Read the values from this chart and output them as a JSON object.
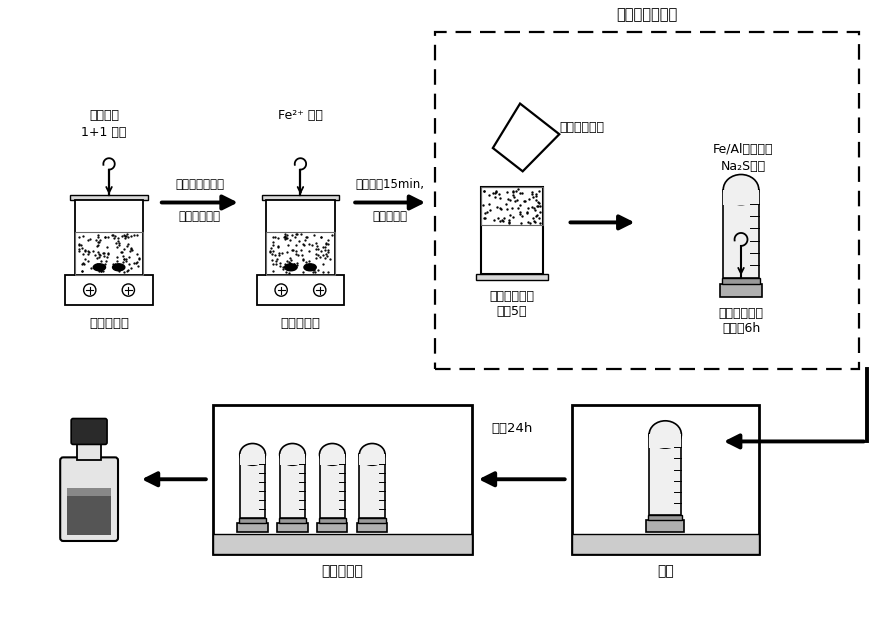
{
  "bg_color": "#ffffff",
  "text_color": "#000000",
  "title_anaerobic": "厌氧条件下操作",
  "label_stirrer1": "磁力搅拌器",
  "label_stirrer2": "磁力搅拌器",
  "label_beaker_wash": "脱氧去离子水\n冲洗5次",
  "label_tube_react": "厌氧状态下混\n合反应6h",
  "label_freezer": "冰箱",
  "label_dryer": "真空干燥器",
  "label_input1_line1": "铝颗粒、",
  "label_input1_line2": "1+1 盐酸",
  "label_input2": "Fe²⁺ 溶液",
  "label_funnel": "脱氧去离子水",
  "label_fealnasol": "Fe/Al双金属、",
  "label_nasol": "Na₂S溶液",
  "label_arrow1_l1": "搅拌至烧杯中有",
  "label_arrow1_l2": "大量气泡产生",
  "label_arrow2_l1": "快速搅拌15min,",
  "label_arrow2_l2": "冷却至室温",
  "label_arrow3": "冷冻24h"
}
